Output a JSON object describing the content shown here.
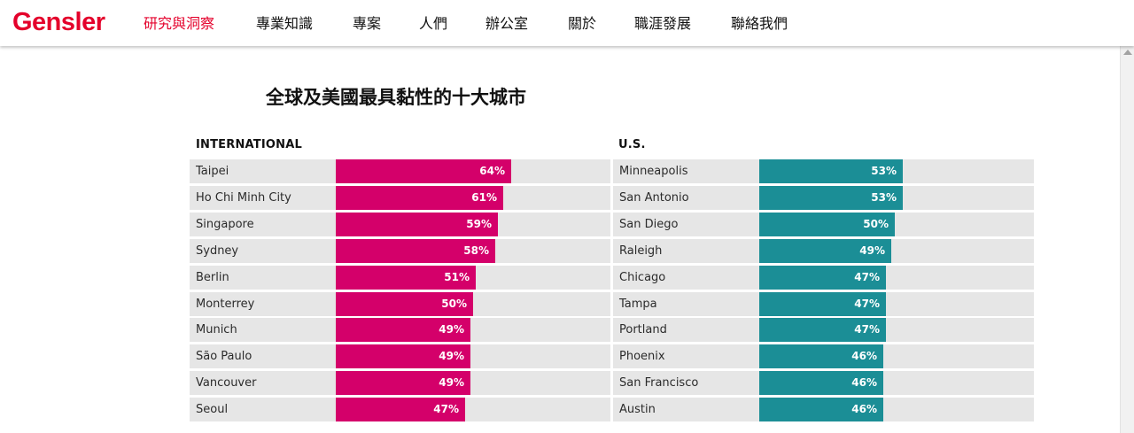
{
  "header": {
    "logo": "Gensler",
    "nav": [
      {
        "label": "研究與洞察",
        "active": true
      },
      {
        "label": "專業知識",
        "active": false
      },
      {
        "label": "專案",
        "active": false
      },
      {
        "label": "人們",
        "active": false
      },
      {
        "label": "辦公室",
        "active": false
      },
      {
        "label": "關於",
        "active": false
      },
      {
        "label": "職涯發展",
        "active": false
      },
      {
        "label": "聯絡我們",
        "active": false
      }
    ]
  },
  "colors": {
    "brand_red": "#e4002b",
    "international_bar": "#d4006a",
    "us_bar": "#1b8e96",
    "row_background": "#e6e6e6",
    "text": "#111111"
  },
  "chart_data": {
    "type": "bar",
    "orientation": "horizontal",
    "title": "全球及美國最具黏性的十大城市",
    "value_format": "{v}%",
    "xlim": [
      0,
      100
    ],
    "grid": false,
    "panels": [
      {
        "name": "INTERNATIONAL",
        "color": "#d4006a",
        "categories": [
          "Taipei",
          "Ho Chi Minh City",
          "Singapore",
          "Sydney",
          "Berlin",
          "Monterrey",
          "Munich",
          "São Paulo",
          "Vancouver",
          "Seoul"
        ],
        "values": [
          64,
          61,
          59,
          58,
          51,
          50,
          49,
          49,
          49,
          47
        ],
        "labels": [
          "64%",
          "61%",
          "59%",
          "58%",
          "51%",
          "50%",
          "49%",
          "49%",
          "49%",
          "47%"
        ]
      },
      {
        "name": "U.S.",
        "color": "#1b8e96",
        "categories": [
          "Minneapolis",
          "San Antonio",
          "San Diego",
          "Raleigh",
          "Chicago",
          "Tampa",
          "Portland",
          "Phoenix",
          "San Francisco",
          "Austin"
        ],
        "values": [
          53,
          53,
          50,
          49,
          47,
          47,
          47,
          46,
          46,
          46
        ],
        "labels": [
          "53%",
          "53%",
          "50%",
          "49%",
          "47%",
          "47%",
          "47%",
          "46%",
          "46%",
          "46%"
        ]
      }
    ]
  }
}
